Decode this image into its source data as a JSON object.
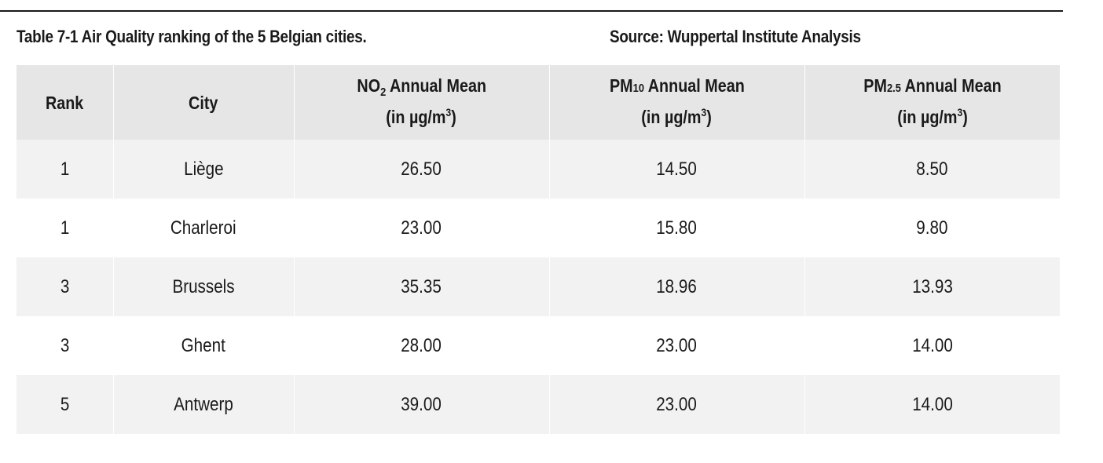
{
  "caption": "Table 7-1 Air Quality ranking of the 5 Belgian cities.",
  "source": "Source: Wuppertal Institute Analysis",
  "headers": {
    "rank": "Rank",
    "city": "City",
    "no2": {
      "prefix": "NO",
      "sub": "2",
      "suffix": " Annual Mean"
    },
    "pm10": {
      "prefix": "PM",
      "sub": "10",
      "suffix": " Annual Mean"
    },
    "pm25": {
      "prefix": "PM",
      "sub": "2.5",
      "suffix": " Annual Mean"
    },
    "unit": {
      "prefix": "(in µg/m",
      "sup": "3",
      "suffix": ")"
    }
  },
  "rows": [
    {
      "rank": "1",
      "city": "Liège",
      "no2": "26.50",
      "pm10": "14.50",
      "pm25": "8.50"
    },
    {
      "rank": "1",
      "city": "Charleroi",
      "no2": "23.00",
      "pm10": "15.80",
      "pm25": "9.80"
    },
    {
      "rank": "3",
      "city": "Brussels",
      "no2": "35.35",
      "pm10": "18.96",
      "pm25": "13.93"
    },
    {
      "rank": "3",
      "city": "Ghent",
      "no2": "28.00",
      "pm10": "23.00",
      "pm25": "14.00"
    },
    {
      "rank": "5",
      "city": "Antwerp",
      "no2": "39.00",
      "pm10": "23.00",
      "pm25": "14.00"
    }
  ],
  "colors": {
    "header_bg": "#e6e6e6",
    "shaded_row_bg": "#f2f2f2",
    "text": "#1a1a1a"
  }
}
